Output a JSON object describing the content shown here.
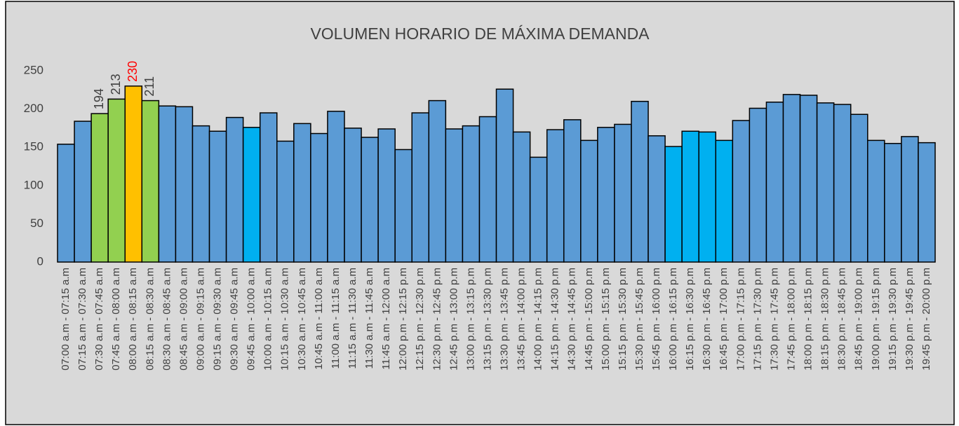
{
  "chart_data": {
    "type": "bar",
    "title": "VOLUMEN HORARIO DE MÁXIMA DEMANDA",
    "categories": [
      "07:00 a.m - 07:15 a.m",
      "07:15 a.m - 07:30 a.m",
      "07:30 a.m - 07:45 a.m",
      "07:45 a.m - 08:00 a.m",
      "08:00 a.m - 08:15 a.m",
      "08:15 a.m - 08:30 a.m",
      "08:30 a.m - 08:45 a.m",
      "08:45 a.m - 09:00 a.m",
      "09:00 a.m - 09:15 a.m",
      "09:15 a.m - 09:30 a.m",
      "09:30 a.m - 09:45 a.m",
      "09:45 a.m - 10:00 a.m",
      "10:00 a.m - 10:15 a.m",
      "10:15 a.m - 10:30 a.m",
      "10:30 a.m - 10:45 a.m",
      "10:45 a.m - 11:00 a.m",
      "11:00 a.m - 11:15 a.m",
      "11:15 a.m - 11:30 a.m",
      "11:30 a.m - 11:45 a.m",
      "11:45 a.m - 12:00 a.m",
      "12:00 p.m - 12:15 p.m",
      "12:15 p.m - 12:30 p.m",
      "12:30 p.m - 12:45 p.m",
      "12:45 p.m - 13:00 p.m",
      "13:00 p.m - 13:15 p.m",
      "13:15 p.m - 13:30 p.m",
      "13:30 p.m - 13:45 p.m",
      "13:45 p.m - 14:00 p.m",
      "14:00 p.m - 14:15 p.m",
      "14:15 p.m - 14:30 p.m",
      "14:30 p.m - 14:45 p.m",
      "14:45 p.m - 15:00 p.m",
      "15:00 p.m - 15:15 p.m",
      "15:15 p.m - 15:30 p.m",
      "15:30 p.m - 15:45 p.m",
      "15:45 p.m - 16:00 p.m",
      "16:00 p.m - 16:15 p.m",
      "16:15 p.m - 16:30 p.m",
      "16:30 p.m - 16:45 p.m",
      "16:45 p.m - 17:00 p.m",
      "17:00 p.m - 17:15 p.m",
      "17:15 p.m - 17:30 p.m",
      "17:30 p.m - 17:45 p.m",
      "17:45 p.m - 18:00 p.m",
      "18:00 p.m - 18:15 p.m",
      "18:15 p.m - 18:30 p.m",
      "18:30 p.m - 18:45 p.m",
      "18:45 p.m - 19:00 p.m",
      "19:00 p.m - 19:15 p.m",
      "19:15 p.m - 19:30 p.m",
      "19:30 p.m - 19:45 p.m",
      "19:45 p.m - 20:00 p.m"
    ],
    "values": [
      154,
      184,
      194,
      213,
      230,
      211,
      204,
      203,
      178,
      171,
      189,
      176,
      195,
      158,
      181,
      168,
      197,
      175,
      163,
      174,
      147,
      195,
      211,
      174,
      178,
      190,
      226,
      170,
      137,
      173,
      186,
      159,
      176,
      180,
      210,
      165,
      151,
      171,
      170,
      159,
      185,
      201,
      209,
      219,
      218,
      208,
      206,
      193,
      159,
      155,
      164,
      156
    ],
    "colors": [
      "#5b9bd5",
      "#5b9bd5",
      "#92d050",
      "#92d050",
      "#ffc000",
      "#92d050",
      "#5b9bd5",
      "#5b9bd5",
      "#5b9bd5",
      "#5b9bd5",
      "#5b9bd5",
      "#00b0f0",
      "#5b9bd5",
      "#5b9bd5",
      "#5b9bd5",
      "#5b9bd5",
      "#5b9bd5",
      "#5b9bd5",
      "#5b9bd5",
      "#5b9bd5",
      "#5b9bd5",
      "#5b9bd5",
      "#5b9bd5",
      "#5b9bd5",
      "#5b9bd5",
      "#5b9bd5",
      "#5b9bd5",
      "#5b9bd5",
      "#5b9bd5",
      "#5b9bd5",
      "#5b9bd5",
      "#5b9bd5",
      "#5b9bd5",
      "#5b9bd5",
      "#5b9bd5",
      "#5b9bd5",
      "#00b0f0",
      "#00b0f0",
      "#00b0f0",
      "#00b0f0",
      "#5b9bd5",
      "#5b9bd5",
      "#5b9bd5",
      "#5b9bd5",
      "#5b9bd5",
      "#5b9bd5",
      "#5b9bd5",
      "#5b9bd5",
      "#5b9bd5",
      "#5b9bd5",
      "#5b9bd5",
      "#5b9bd5"
    ],
    "value_labels": [
      null,
      null,
      "194",
      "213",
      "230",
      "211",
      null,
      null,
      null,
      null,
      null,
      null,
      null,
      null,
      null,
      null,
      null,
      null,
      null,
      null,
      null,
      null,
      null,
      null,
      null,
      null,
      null,
      null,
      null,
      null,
      null,
      null,
      null,
      null,
      null,
      null,
      null,
      null,
      null,
      null,
      null,
      null,
      null,
      null,
      null,
      null,
      null,
      null,
      null,
      null,
      null,
      null
    ],
    "value_label_colors": [
      null,
      null,
      "#404040",
      "#404040",
      "#ff0000",
      "#404040",
      null,
      null,
      null,
      null,
      null,
      null,
      null,
      null,
      null,
      null,
      null,
      null,
      null,
      null,
      null,
      null,
      null,
      null,
      null,
      null,
      null,
      null,
      null,
      null,
      null,
      null,
      null,
      null,
      null,
      null,
      null,
      null,
      null,
      null,
      null,
      null,
      null,
      null,
      null,
      null,
      null,
      null,
      null,
      null,
      null,
      null
    ],
    "ylim": [
      0,
      250
    ],
    "yticks": [
      0,
      50,
      100,
      150,
      200,
      250
    ],
    "grid": false
  }
}
